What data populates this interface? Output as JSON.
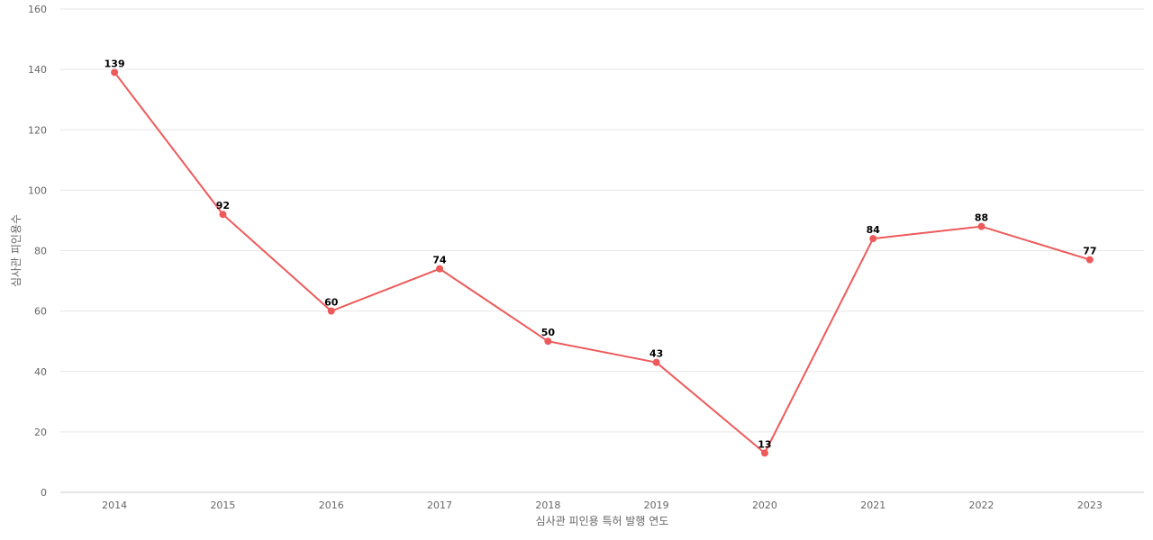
{
  "chart_data": {
    "type": "line",
    "title": "",
    "xlabel": "심사관 피인용 특허 발행 연도",
    "ylabel": "심사관 피인용수",
    "x": [
      "2014",
      "2015",
      "2016",
      "2017",
      "2018",
      "2019",
      "2020",
      "2021",
      "2022",
      "2023"
    ],
    "series": [
      {
        "values": [
          139,
          92,
          60,
          74,
          50,
          43,
          13,
          84,
          88,
          77
        ],
        "color": "#ee5a5a"
      }
    ],
    "ylim": [
      0,
      160
    ],
    "yticks": [
      0,
      20,
      40,
      60,
      80,
      100,
      120,
      140,
      160
    ],
    "grid": true,
    "data_labels": true,
    "legend": "none"
  }
}
